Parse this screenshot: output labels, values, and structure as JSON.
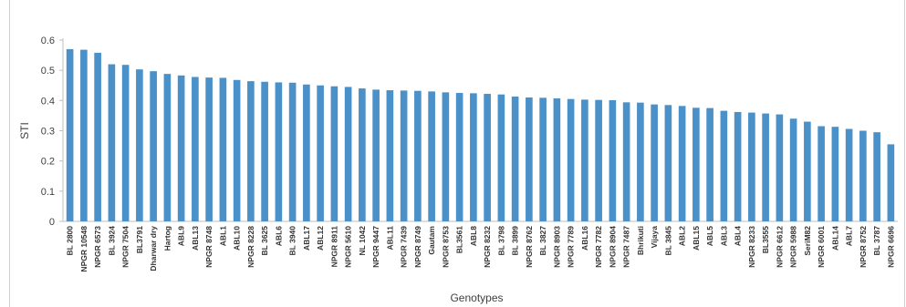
{
  "chart_data": {
    "type": "bar",
    "ylabel": "STI",
    "xlabel": "Genotypes",
    "ylim": [
      0,
      0.6
    ],
    "yticks": [
      "0",
      "0.1",
      "0.2",
      "0.3",
      "0.4",
      "0.5",
      "0.6"
    ],
    "grid": false,
    "bar_color": "#4a90c9",
    "categories": [
      "BL 2800",
      "NPGR 10548",
      "NPGR 6573",
      "BL 3924",
      "NPGR 7504",
      "BL3791",
      "Dharwar dry",
      "Hartog",
      "ABL9",
      "ABL13",
      "NPGR 8748",
      "ABL1",
      "ABL10",
      "NPGR 8228",
      "BL 3625",
      "ABL6",
      "BL 3940",
      "ABL17",
      "ABL12",
      "NPGR 8911",
      "NPGR 5610",
      "NL 1042",
      "NPGR 9447",
      "ABL11",
      "NPGR 7439",
      "NPGR 8749",
      "Gautam",
      "NPGR 8753",
      "BL3561",
      "ABL8",
      "NPGR 8232",
      "BL 3798",
      "BL 3899",
      "NPGR 8762",
      "BL 3827",
      "NPGR 8903",
      "NPGR 7789",
      "ABL16",
      "NPGR 7782",
      "NPGR 8904",
      "NPGR 7487",
      "Bhrikuti",
      "Vijaya",
      "BL 3845",
      "ABL2",
      "ABL15",
      "ABL5",
      "ABL3",
      "ABL4",
      "NPGR 8233",
      "BL3555",
      "NPGR 6612",
      "NPGR 5988",
      "SeriM82",
      "NPGR 6001",
      "ABL14",
      "ABL7",
      "NPGR 8752",
      "BL 3787",
      "NPGR 6696"
    ],
    "values": [
      0.57,
      0.568,
      0.558,
      0.52,
      0.518,
      0.503,
      0.497,
      0.488,
      0.483,
      0.478,
      0.476,
      0.475,
      0.468,
      0.464,
      0.462,
      0.46,
      0.459,
      0.453,
      0.45,
      0.447,
      0.445,
      0.44,
      0.436,
      0.434,
      0.433,
      0.432,
      0.43,
      0.427,
      0.425,
      0.424,
      0.422,
      0.42,
      0.413,
      0.41,
      0.409,
      0.407,
      0.405,
      0.403,
      0.402,
      0.401,
      0.394,
      0.393,
      0.387,
      0.385,
      0.382,
      0.376,
      0.375,
      0.366,
      0.362,
      0.36,
      0.357,
      0.354,
      0.34,
      0.33,
      0.315,
      0.313,
      0.306,
      0.3,
      0.295,
      0.255
    ]
  }
}
